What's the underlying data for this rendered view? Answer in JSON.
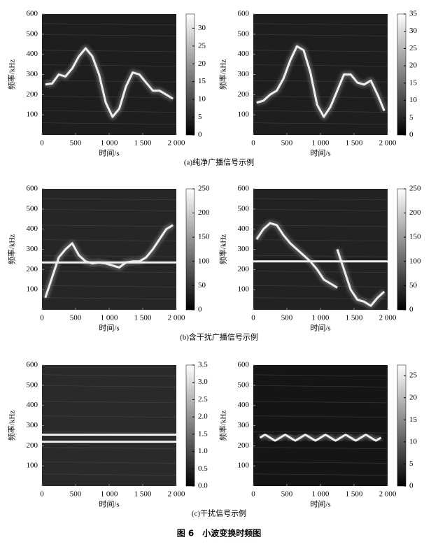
{
  "figure_title": "图 6　小波变换时频图",
  "captions": [
    "(a)纯净广播信号示例",
    "(b)含干扰广播信号示例",
    "(c)干扰信号示例"
  ],
  "chart_data": [
    {
      "type": "heatmap",
      "xlabel": "时间/s",
      "ylabel": "频率/kHz",
      "xlim": [
        0,
        2000
      ],
      "xticks": [
        0,
        500,
        {
          "value": 1000,
          "label": "1 000"
        },
        {
          "value": 1500,
          "label": "1 500"
        },
        {
          "value": 2000,
          "label": "2 000"
        }
      ],
      "ylim": [
        0,
        600
      ],
      "yticks": [
        100,
        200,
        300,
        400,
        500,
        600
      ],
      "colorbar": {
        "lim": [
          0,
          34
        ],
        "ticks": [
          0,
          5,
          10,
          15,
          20,
          25,
          30
        ]
      },
      "ridges": [
        {
          "x": [
            50,
            150,
            250,
            350,
            450,
            550,
            650,
            750,
            850,
            950,
            1050,
            1150,
            1250,
            1350,
            1450,
            1550,
            1650,
            1750,
            1850,
            1950
          ],
          "values": [
            250,
            255,
            300,
            290,
            330,
            390,
            430,
            390,
            300,
            160,
            90,
            130,
            240,
            310,
            300,
            260,
            220,
            220,
            200,
            180
          ]
        }
      ]
    },
    {
      "type": "heatmap",
      "xlabel": "时间/s",
      "ylabel": "频率/kHz",
      "xlim": [
        0,
        2000
      ],
      "xticks": [
        0,
        500,
        {
          "value": 1000,
          "label": "1 000"
        },
        {
          "value": 1500,
          "label": "1 500"
        },
        {
          "value": 2000,
          "label": "2 000"
        }
      ],
      "ylim": [
        0,
        600
      ],
      "yticks": [
        100,
        200,
        300,
        400,
        500,
        600
      ],
      "colorbar": {
        "lim": [
          0,
          35
        ],
        "ticks": [
          0,
          5,
          10,
          15,
          20,
          25,
          30,
          35
        ]
      },
      "ridges": [
        {
          "x": [
            50,
            150,
            250,
            350,
            450,
            550,
            650,
            750,
            850,
            950,
            1050,
            1150,
            1250,
            1350,
            1450,
            1550,
            1650,
            1750,
            1850,
            1950
          ],
          "values": [
            160,
            170,
            200,
            220,
            280,
            370,
            440,
            420,
            310,
            150,
            90,
            140,
            220,
            300,
            300,
            260,
            250,
            270,
            200,
            120
          ]
        }
      ]
    },
    {
      "type": "heatmap",
      "xlabel": "时间/s",
      "ylabel": "频率/kHz",
      "xlim": [
        0,
        2000
      ],
      "xticks": [
        0,
        500,
        {
          "value": 1000,
          "label": "1 000"
        },
        {
          "value": 1500,
          "label": "1 500"
        },
        {
          "value": 2000,
          "label": "2 000"
        }
      ],
      "ylim": [
        0,
        600
      ],
      "yticks": [
        100,
        200,
        300,
        400,
        500,
        600
      ],
      "colorbar": {
        "lim": [
          0,
          250
        ],
        "ticks": [
          0,
          50,
          100,
          150,
          200,
          250
        ]
      },
      "ridges": [
        {
          "x": [
            50,
            150,
            250,
            350,
            450,
            550,
            650,
            750,
            850,
            950,
            1050,
            1150,
            1250,
            1350,
            1450,
            1550,
            1650,
            1750,
            1850,
            1950
          ],
          "values": [
            60,
            160,
            260,
            300,
            330,
            270,
            240,
            230,
            235,
            230,
            220,
            210,
            235,
            240,
            240,
            260,
            300,
            350,
            400,
            420
          ]
        },
        {
          "x": [
            0,
            2000
          ],
          "values": [
            235,
            235
          ]
        }
      ]
    },
    {
      "type": "heatmap",
      "xlabel": "时间/s",
      "ylabel": "频率/kHz",
      "xlim": [
        0,
        2000
      ],
      "xticks": [
        0,
        500,
        {
          "value": 1000,
          "label": "1 000"
        },
        {
          "value": 1500,
          "label": "1 500"
        },
        {
          "value": 2000,
          "label": "2 000"
        }
      ],
      "ylim": [
        0,
        600
      ],
      "yticks": [
        100,
        200,
        300,
        400,
        500,
        600
      ],
      "colorbar": {
        "lim": [
          0,
          250
        ],
        "ticks": [
          0,
          50,
          100,
          150,
          200,
          250
        ]
      },
      "ridges": [
        {
          "x": [
            50,
            150,
            250,
            350,
            450,
            550,
            650,
            750,
            850,
            950,
            1050,
            1150,
            1250
          ],
          "values": [
            350,
            400,
            430,
            420,
            370,
            330,
            300,
            270,
            240,
            200,
            150,
            130,
            110
          ]
        },
        {
          "x": [
            1250,
            1350,
            1450,
            1550,
            1650,
            1750,
            1850,
            1950
          ],
          "values": [
            300,
            200,
            100,
            50,
            40,
            20,
            60,
            90
          ]
        },
        {
          "x": [
            0,
            2000
          ],
          "values": [
            240,
            240
          ]
        }
      ]
    },
    {
      "type": "heatmap",
      "xlabel": "时间/s",
      "ylabel": "频率/kHz",
      "xlim": [
        0,
        2000
      ],
      "xticks": [
        0,
        500,
        {
          "value": 1000,
          "label": "1 000"
        },
        {
          "value": 1500,
          "label": "1 500"
        },
        {
          "value": 2000,
          "label": "2 000"
        }
      ],
      "ylim": [
        0,
        600
      ],
      "yticks": [
        100,
        200,
        300,
        400,
        500,
        600
      ],
      "colorbar": {
        "lim": [
          0,
          3.5
        ],
        "ticks": [
          {
            "value": 0,
            "label": "0.0"
          },
          0.5,
          {
            "value": 1,
            "label": "1.0"
          },
          1.5,
          {
            "value": 2,
            "label": "2.0"
          },
          2.5,
          {
            "value": 3,
            "label": "3.0"
          },
          3.5
        ]
      },
      "ridges": [
        {
          "x": [
            0,
            2000
          ],
          "values": [
            255,
            255
          ]
        },
        {
          "x": [
            0,
            2000
          ],
          "values": [
            220,
            220
          ]
        }
      ]
    },
    {
      "type": "heatmap",
      "xlabel": "时间/s",
      "ylabel": "频率/kHz",
      "xlim": [
        0,
        2000
      ],
      "xticks": [
        0,
        500,
        {
          "value": 1000,
          "label": "1 000"
        },
        {
          "value": 1500,
          "label": "1 500"
        },
        {
          "value": 2000,
          "label": "2 000"
        }
      ],
      "ylim": [
        0,
        600
      ],
      "yticks": [
        100,
        200,
        300,
        400,
        500,
        600
      ],
      "colorbar": {
        "lim": [
          0,
          27.4
        ],
        "ticks": [
          0,
          5,
          10,
          15,
          20,
          25
        ]
      },
      "ridges": [
        {
          "x": [
            100,
            175,
            250,
            325,
            400,
            475,
            550,
            625,
            700,
            775,
            850,
            925,
            1000,
            1075,
            1150,
            1225,
            1300,
            1375,
            1450,
            1525,
            1600,
            1675,
            1750,
            1825,
            1900
          ],
          "values": [
            240,
            255,
            240,
            225,
            240,
            255,
            240,
            225,
            240,
            255,
            240,
            225,
            240,
            255,
            240,
            225,
            240,
            255,
            240,
            225,
            240,
            255,
            240,
            225,
            240
          ]
        }
      ]
    }
  ]
}
